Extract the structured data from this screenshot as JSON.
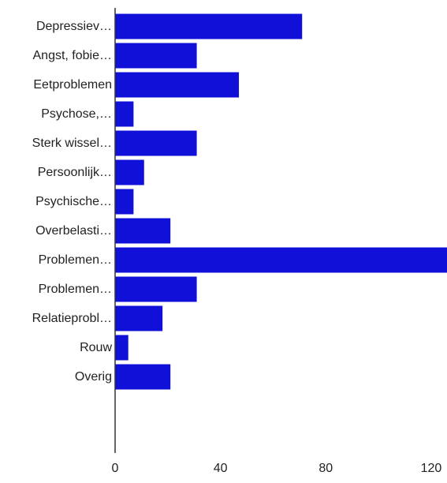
{
  "chart_data": {
    "type": "bar",
    "orientation": "horizontal",
    "categories": [
      "Depressiev…",
      "Angst, fobie…",
      "Eetproblemen",
      "Psychose,…",
      "Sterk wissel…",
      "Persoonlijk…",
      "Psychische…",
      "Overbelasti…",
      "Problemen…",
      "Problemen…",
      "Relatieprobl…",
      "Rouw",
      "Overig"
    ],
    "values": [
      71,
      31,
      47,
      7,
      31,
      11,
      7,
      21,
      126,
      31,
      18,
      5,
      21
    ],
    "xlim": [
      0,
      126
    ],
    "xticks": [
      0,
      40,
      80,
      120
    ],
    "grid": false,
    "bar_color": "#1010D8",
    "axis_color": "#333333",
    "label_color": "#222222"
  }
}
